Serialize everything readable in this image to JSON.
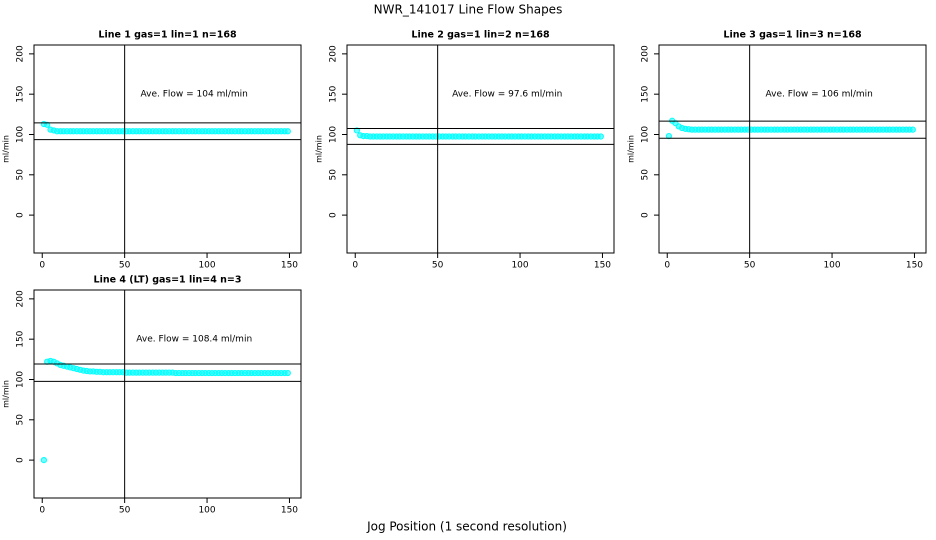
{
  "title": "NWR_141017  Line Flow Shapes",
  "xlabel": "Jog Position (1 second resolution)",
  "chart_data": [
    {
      "type": "scatter",
      "title": "Line 1 gas=1 lin=1 n=168",
      "ylabel": "ml/min",
      "annotation": "Ave. Flow =  104  ml/min",
      "color": "#00ffff",
      "xlim": [
        -5,
        157
      ],
      "ylim": [
        -47,
        211
      ],
      "xticks": [
        0,
        50,
        100,
        150
      ],
      "yticks": [
        0,
        50,
        100,
        150,
        200
      ],
      "hlines": [
        114.4,
        93.6
      ],
      "vline": 50,
      "x": [
        1,
        3,
        5,
        7,
        9,
        11,
        13,
        15,
        17,
        19,
        21,
        23,
        25,
        27,
        29,
        31,
        33,
        35,
        37,
        39,
        41,
        43,
        45,
        47,
        49,
        51,
        53,
        55,
        57,
        59,
        61,
        63,
        65,
        67,
        69,
        71,
        73,
        75,
        77,
        79,
        81,
        83,
        85,
        87,
        89,
        91,
        93,
        95,
        97,
        99,
        101,
        103,
        105,
        107,
        109,
        111,
        113,
        115,
        117,
        119,
        121,
        123,
        125,
        127,
        129,
        131,
        133,
        135,
        137,
        139,
        141,
        143,
        145,
        147,
        149
      ],
      "values": [
        113,
        112,
        106,
        105,
        104,
        104,
        104,
        104,
        104,
        104,
        104,
        104,
        104,
        104,
        104,
        104,
        104,
        104,
        104,
        104,
        104,
        104,
        104,
        104,
        104,
        104,
        104,
        104,
        104,
        104,
        104,
        104,
        104,
        104,
        104,
        104,
        104,
        104,
        104,
        104,
        104,
        104,
        104,
        104,
        104,
        104,
        104,
        104,
        104,
        104,
        104,
        104,
        104,
        104,
        104,
        104,
        104,
        104,
        104,
        104,
        104,
        104,
        104,
        104,
        104,
        104,
        104,
        104,
        104,
        104,
        104,
        104,
        104,
        104,
        104
      ]
    },
    {
      "type": "scatter",
      "title": "Line 2 gas=1 lin=2 n=168",
      "ylabel": "ml/min",
      "annotation": "Ave. Flow =  97.6  ml/min",
      "color": "#00ffff",
      "xlim": [
        -5,
        157
      ],
      "ylim": [
        -47,
        211
      ],
      "xticks": [
        0,
        50,
        100,
        150
      ],
      "yticks": [
        0,
        50,
        100,
        150,
        200
      ],
      "hlines": [
        107.4,
        87.8
      ],
      "vline": 50,
      "x": [
        1,
        3,
        5,
        7,
        9,
        11,
        13,
        15,
        17,
        19,
        21,
        23,
        25,
        27,
        29,
        31,
        33,
        35,
        37,
        39,
        41,
        43,
        45,
        47,
        49,
        51,
        53,
        55,
        57,
        59,
        61,
        63,
        65,
        67,
        69,
        71,
        73,
        75,
        77,
        79,
        81,
        83,
        85,
        87,
        89,
        91,
        93,
        95,
        97,
        99,
        101,
        103,
        105,
        107,
        109,
        111,
        113,
        115,
        117,
        119,
        121,
        123,
        125,
        127,
        129,
        131,
        133,
        135,
        137,
        139,
        141,
        143,
        145,
        147,
        149
      ],
      "values": [
        105,
        99,
        98,
        98,
        97.5,
        97.5,
        97.5,
        97.5,
        97.5,
        97.5,
        97.5,
        97.5,
        97.5,
        97.5,
        97.5,
        97.5,
        97.5,
        97.5,
        97.5,
        97.5,
        97.5,
        97.5,
        97.5,
        97.5,
        97.5,
        97.5,
        97.5,
        97.5,
        97.5,
        97.5,
        97.5,
        97.5,
        97.5,
        97.5,
        97.5,
        97.5,
        97.5,
        97.5,
        97.5,
        97.5,
        97.5,
        97.5,
        97.5,
        97.5,
        97.5,
        97.5,
        97.5,
        97.5,
        97.5,
        97.5,
        97.5,
        97.5,
        97.5,
        97.5,
        97.5,
        97.5,
        97.5,
        97.5,
        97.5,
        97.5,
        97.5,
        97.5,
        97.5,
        97.5,
        97.5,
        97.5,
        97.5,
        97.5,
        97.5,
        97.5,
        97.5,
        97.5,
        97.5,
        97.5,
        97.5
      ]
    },
    {
      "type": "scatter",
      "title": "Line 3 gas=1 lin=3 n=168",
      "ylabel": "ml/min",
      "annotation": "Ave. Flow =  106  ml/min",
      "color": "#00ffff",
      "xlim": [
        -5,
        157
      ],
      "ylim": [
        -47,
        211
      ],
      "xticks": [
        0,
        50,
        100,
        150
      ],
      "yticks": [
        0,
        50,
        100,
        150,
        200
      ],
      "hlines": [
        116.6,
        95.4
      ],
      "vline": 50,
      "x": [
        1,
        3,
        5,
        7,
        9,
        11,
        13,
        15,
        17,
        19,
        21,
        23,
        25,
        27,
        29,
        31,
        33,
        35,
        37,
        39,
        41,
        43,
        45,
        47,
        49,
        51,
        53,
        55,
        57,
        59,
        61,
        63,
        65,
        67,
        69,
        71,
        73,
        75,
        77,
        79,
        81,
        83,
        85,
        87,
        89,
        91,
        93,
        95,
        97,
        99,
        101,
        103,
        105,
        107,
        109,
        111,
        113,
        115,
        117,
        119,
        121,
        123,
        125,
        127,
        129,
        131,
        133,
        135,
        137,
        139,
        141,
        143,
        145,
        147,
        149
      ],
      "values": [
        98,
        117,
        114,
        110,
        108,
        107,
        106.5,
        106,
        106,
        106,
        106,
        106,
        106,
        106,
        106,
        106,
        106,
        106,
        106,
        106,
        106,
        106,
        106,
        106,
        106,
        106,
        106,
        106,
        106,
        106,
        106,
        106,
        106,
        106,
        106,
        106,
        106,
        106,
        106,
        106,
        106,
        106,
        106,
        106,
        106,
        106,
        106,
        106,
        106,
        106,
        106,
        106,
        106,
        106,
        106,
        106,
        106,
        106,
        106,
        106,
        106,
        106,
        106,
        106,
        106,
        106,
        106,
        106,
        106,
        106,
        106,
        106,
        106,
        106,
        106
      ]
    },
    {
      "type": "scatter",
      "title": "Line 4 (LT) gas=1 lin=4 n=3",
      "ylabel": "ml/min",
      "annotation": "Ave. Flow =  108.4  ml/min",
      "color": "#00ffff",
      "xlim": [
        -5,
        157
      ],
      "ylim": [
        -47,
        211
      ],
      "xticks": [
        0,
        50,
        100,
        150
      ],
      "yticks": [
        0,
        50,
        100,
        150,
        200
      ],
      "hlines": [
        119.2,
        97.6
      ],
      "vline": 50,
      "x": [
        1,
        3,
        5,
        7,
        9,
        11,
        13,
        15,
        17,
        19,
        21,
        23,
        25,
        27,
        29,
        31,
        33,
        35,
        37,
        39,
        41,
        43,
        45,
        47,
        49,
        51,
        53,
        55,
        57,
        59,
        61,
        63,
        65,
        67,
        69,
        71,
        73,
        75,
        77,
        79,
        81,
        83,
        85,
        87,
        89,
        91,
        93,
        95,
        97,
        99,
        101,
        103,
        105,
        107,
        109,
        111,
        113,
        115,
        117,
        119,
        121,
        123,
        125,
        127,
        129,
        131,
        133,
        135,
        137,
        139,
        141,
        143,
        145,
        147,
        149
      ],
      "values": [
        0,
        122,
        123,
        122,
        120,
        118,
        117,
        116,
        115,
        114,
        113,
        112,
        111,
        110.5,
        110,
        110,
        109.5,
        109.5,
        109,
        109,
        109,
        109,
        109,
        109,
        109,
        108.5,
        108.5,
        108.5,
        108.5,
        108.5,
        108.5,
        108.5,
        108.5,
        108.5,
        108.5,
        108.5,
        108.5,
        108.5,
        108.5,
        108.5,
        108,
        108,
        108,
        108,
        108,
        108,
        108,
        108,
        108,
        108,
        108,
        108,
        108,
        108,
        108,
        108,
        108,
        108,
        108,
        108,
        108,
        108,
        108,
        108,
        108,
        108,
        108,
        108,
        108,
        108,
        108,
        108,
        108,
        108,
        108
      ]
    }
  ]
}
